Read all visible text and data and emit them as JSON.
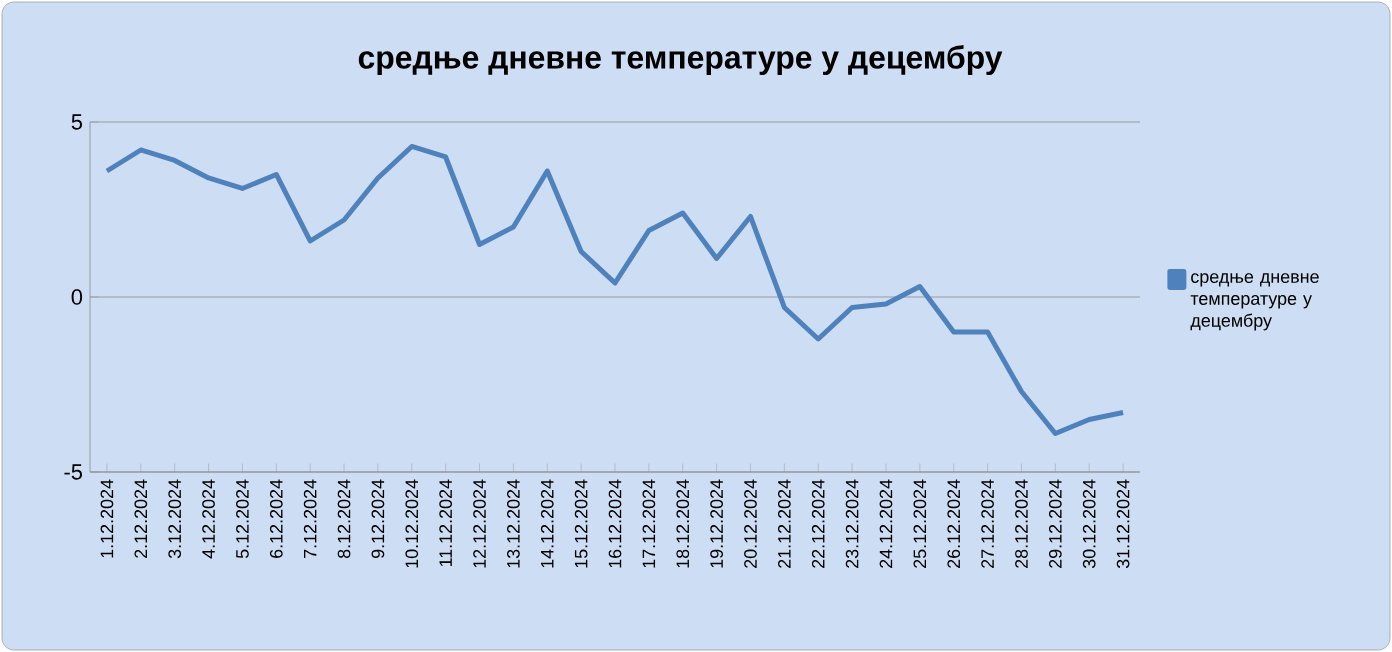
{
  "chart_data": {
    "type": "line",
    "title": "средње дневне температуре у децембру",
    "categories": [
      "1.12.2024",
      "2.12.2024",
      "3.12.2024",
      "4.12.2024",
      "5.12.2024",
      "6.12.2024",
      "7.12.2024",
      "8.12.2024",
      "9.12.2024",
      "10.12.2024",
      "11.12.2024",
      "12.12.2024",
      "13.12.2024",
      "14.12.2024",
      "15.12.2024",
      "16.12.2024",
      "17.12.2024",
      "18.12.2024",
      "19.12.2024",
      "20.12.2024",
      "21.12.2024",
      "22.12.2024",
      "23.12.2024",
      "24.12.2024",
      "25.12.2024",
      "26.12.2024",
      "27.12.2024",
      "28.12.2024",
      "29.12.2024",
      "30.12.2024",
      "31.12.2024"
    ],
    "series": [
      {
        "name": "средње дневне температуре у децембру",
        "color": "#4f81bd",
        "values": [
          3.6,
          4.2,
          3.9,
          3.4,
          3.1,
          3.5,
          1.6,
          2.2,
          3.4,
          4.3,
          4.0,
          1.5,
          2.0,
          3.6,
          1.3,
          0.4,
          1.9,
          2.4,
          1.1,
          2.3,
          -0.3,
          -1.2,
          -0.3,
          -0.2,
          0.3,
          -1.0,
          -1.0,
          -2.7,
          -3.9,
          -3.5,
          -3.3
        ]
      }
    ],
    "ylim": [
      -5,
      5
    ],
    "yticks": [
      -5,
      0,
      5
    ],
    "grid": "y",
    "legend": "right",
    "marker": "none",
    "line_style": "solid"
  }
}
